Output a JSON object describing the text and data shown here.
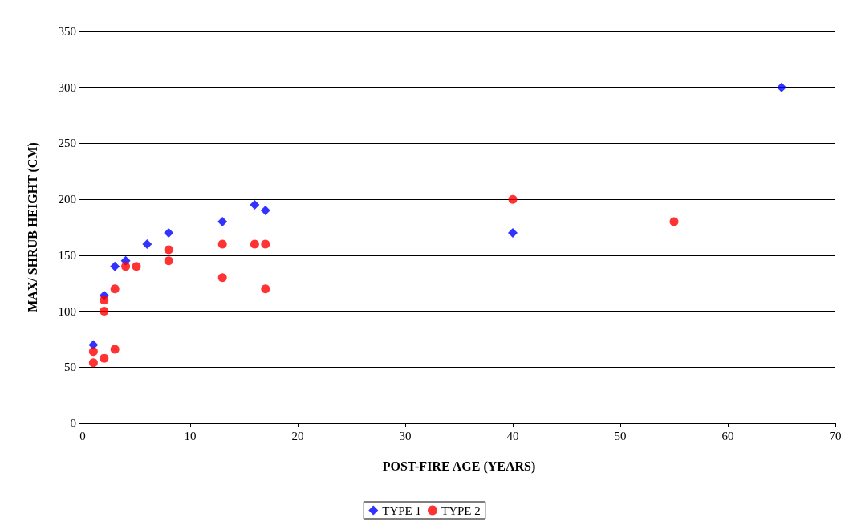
{
  "chart_data": {
    "type": "scatter",
    "xlabel": "POST-FIRE AGE (YEARS)",
    "ylabel": "MAX/ SHRUB HEIGHT (CM)",
    "series": [
      {
        "name": "TYPE 1",
        "color": "#0000ff",
        "marker": "diamond",
        "x": [
          1,
          2,
          3,
          4,
          6,
          8,
          13,
          16,
          17,
          40,
          65
        ],
        "values": [
          70,
          114,
          140,
          145,
          160,
          170,
          180,
          195,
          190,
          170,
          300
        ]
      },
      {
        "name": "TYPE 2",
        "color": "#ff0000",
        "marker": "circle",
        "x": [
          1,
          1,
          2,
          2,
          2,
          3,
          3,
          4,
          5,
          8,
          8,
          13,
          13,
          16,
          17,
          17,
          40,
          55
        ],
        "values": [
          64,
          54,
          58,
          110,
          100,
          120,
          66,
          140,
          140,
          155,
          145,
          160,
          130,
          160,
          160,
          120,
          200,
          180
        ]
      }
    ],
    "xlim": [
      0,
      70
    ],
    "xticks": [
      0,
      10,
      20,
      30,
      40,
      50,
      60,
      70
    ],
    "ylim": [
      0,
      350
    ],
    "yticks": [
      0,
      50,
      100,
      150,
      200,
      250,
      300,
      350
    ],
    "grid": "y",
    "legend": "bottom"
  }
}
